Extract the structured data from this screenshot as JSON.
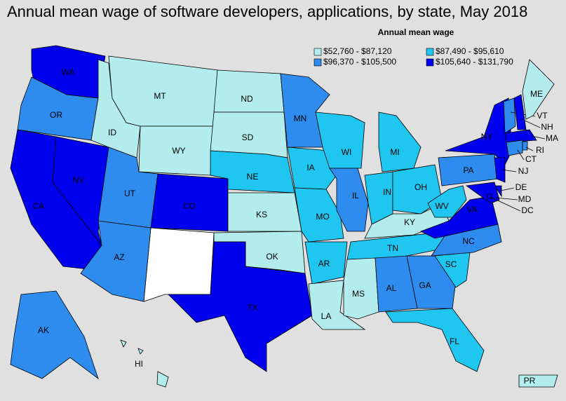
{
  "title": "Annual mean wage of software developers, applications, by state, May 2018",
  "legend": {
    "title": "Annual mean wage",
    "items": [
      {
        "label": "$52,760 - $87,120",
        "color": "#b3ecec"
      },
      {
        "label": "$87,490 - $95,610",
        "color": "#1ec6f0"
      },
      {
        "label": "$96,370 - $105,500",
        "color": "#2e8cef"
      },
      {
        "label": "$105,640 - $131,790",
        "color": "#0000ee"
      }
    ]
  },
  "states": [
    {
      "label": "WA",
      "color": "#0000ee"
    },
    {
      "label": "OR",
      "color": "#2e8cef"
    },
    {
      "label": "CA",
      "color": "#0000ee"
    },
    {
      "label": "NV",
      "color": "#0000ee"
    },
    {
      "label": "ID",
      "color": "#b3ecec"
    },
    {
      "label": "MT",
      "color": "#b3ecec"
    },
    {
      "label": "WY",
      "color": "#b3ecec"
    },
    {
      "label": "UT",
      "color": "#2e8cef"
    },
    {
      "label": "CO",
      "color": "#0000ee"
    },
    {
      "label": "AZ",
      "color": "#2e8cef"
    },
    {
      "label": "ND",
      "color": "#b3ecec"
    },
    {
      "label": "SD",
      "color": "#b3ecec"
    },
    {
      "label": "NE",
      "color": "#1ec6f0"
    },
    {
      "label": "KS",
      "color": "#b3ecec"
    },
    {
      "label": "OK",
      "color": "#b3ecec"
    },
    {
      "label": "TX",
      "color": "#0000ee"
    },
    {
      "label": "MN",
      "color": "#2e8cef"
    },
    {
      "label": "IA",
      "color": "#1ec6f0"
    },
    {
      "label": "MO",
      "color": "#1ec6f0"
    },
    {
      "label": "AR",
      "color": "#1ec6f0"
    },
    {
      "label": "LA",
      "color": "#b3ecec"
    },
    {
      "label": "WI",
      "color": "#1ec6f0"
    },
    {
      "label": "IL",
      "color": "#2e8cef"
    },
    {
      "label": "MI",
      "color": "#1ec6f0"
    },
    {
      "label": "IN",
      "color": "#1ec6f0"
    },
    {
      "label": "OH",
      "color": "#1ec6f0"
    },
    {
      "label": "KY",
      "color": "#b3ecec"
    },
    {
      "label": "TN",
      "color": "#1ec6f0"
    },
    {
      "label": "MS",
      "color": "#b3ecec"
    },
    {
      "label": "AL",
      "color": "#2e8cef"
    },
    {
      "label": "GA",
      "color": "#2e8cef"
    },
    {
      "label": "FL",
      "color": "#1ec6f0"
    },
    {
      "label": "SC",
      "color": "#1ec6f0"
    },
    {
      "label": "NC",
      "color": "#2e8cef"
    },
    {
      "label": "VA",
      "color": "#0000ee"
    },
    {
      "label": "WV",
      "color": "#1ec6f0"
    },
    {
      "label": "PA",
      "color": "#2e8cef"
    },
    {
      "label": "NY",
      "color": "#0000ee"
    },
    {
      "label": "NJ",
      "color": "#0000ee"
    },
    {
      "label": "DE",
      "color": "#0000ee"
    },
    {
      "label": "MD",
      "color": "#0000ee"
    },
    {
      "label": "DC",
      "color": "#0000ee"
    },
    {
      "label": "VT",
      "color": "#2e8cef"
    },
    {
      "label": "NH",
      "color": "#0000ee"
    },
    {
      "label": "ME",
      "color": "#b3ecec"
    },
    {
      "label": "MA",
      "color": "#0000ee"
    },
    {
      "label": "CT",
      "color": "#2e8cef"
    },
    {
      "label": "RI",
      "color": "#2e8cef"
    },
    {
      "label": "AK",
      "color": "#2e8cef"
    },
    {
      "label": "HI",
      "color": "#b3ecec"
    },
    {
      "label": "PR",
      "color": "#b3ecec"
    }
  ]
}
